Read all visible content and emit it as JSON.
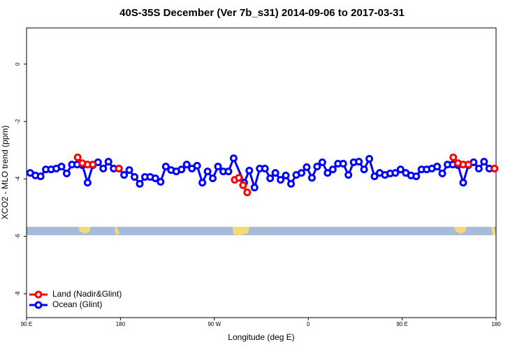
{
  "chart_data": {
    "type": "line",
    "title": "40S-35S December (Ver 7b_s31)   2014-09-06 to 2017-03-31",
    "x_label": "Longitude (deg E)",
    "y_label": "XCO2 - MLO trend (ppm)",
    "xlim": [
      90,
      540
    ],
    "xticks": [
      {
        "value": 90,
        "label": "90 E"
      },
      180,
      {
        "value": 270,
        "label": "90 W"
      },
      {
        "value": 360,
        "label": "0"
      },
      {
        "value": 450,
        "label": "90 E"
      },
      {
        "value": 540,
        "label": "180"
      }
    ],
    "ylim": [
      1.26,
      -8.83
    ],
    "yticks": [
      0,
      -2,
      -4,
      -6,
      -8
    ],
    "legend": "bottom-left",
    "series": [
      {
        "name": "Land (Nadir&Glint)",
        "color": "#ff0000",
        "x": [
          139,
          143.5,
          148.5,
          153.5,
          null,
          178.5,
          null,
          289.5,
          293.5,
          297.5,
          301.5,
          null,
          499,
          503.5,
          508.5,
          513.5,
          null,
          538.5
        ],
        "values": [
          -3.25,
          -3.45,
          -3.5,
          -3.5,
          null,
          -3.64,
          null,
          -4.03,
          -3.96,
          -4.22,
          -4.47,
          null,
          -3.25,
          -3.45,
          -3.5,
          -3.5,
          null,
          -3.64
        ]
      },
      {
        "name": "Ocean (Glint)",
        "color": "#0000ff",
        "x": [
          93.5,
          98.5,
          103.5,
          108.5,
          113.5,
          118.5,
          123.5,
          128.5,
          133.5,
          138.5,
          143.5,
          148.5,
          153.5,
          158.5,
          163.5,
          168.5,
          173.5,
          178.5,
          183.5,
          188.5,
          193.5,
          198.5,
          203.5,
          208.5,
          213.5,
          218.5,
          223.5,
          228.5,
          233.5,
          238.5,
          243.5,
          248.5,
          253.5,
          258.5,
          263.5,
          268.5,
          273.5,
          278.5,
          283.5,
          288.5,
          298.5,
          303.5,
          308.5,
          313.5,
          318.5,
          323.5,
          328.5,
          333.5,
          338.5,
          343.5,
          348.5,
          353.5,
          358.5,
          363.5,
          368.5,
          373.5,
          378.5,
          383.5,
          388.5,
          393.5,
          398.5,
          403.5,
          408.5,
          413.5,
          418.5,
          423.5,
          428.5,
          433.5,
          438.5,
          443.5,
          448.5,
          453.5,
          458.5,
          463.5,
          468.5,
          473.5,
          478.5,
          483.5,
          488.5,
          493.5,
          498.5,
          503.5,
          508.5,
          513.5,
          518.5,
          523.5,
          528.5,
          533.5,
          538.5
        ],
        "values": [
          -3.79,
          -3.88,
          -3.91,
          -3.67,
          -3.67,
          -3.64,
          -3.57,
          -3.81,
          -3.5,
          -3.5,
          -3.52,
          -4.13,
          -3.52,
          -3.42,
          -3.64,
          -3.4,
          -3.64,
          -3.64,
          -3.86,
          -3.69,
          -3.93,
          -4.17,
          -3.93,
          -3.93,
          -3.98,
          -4.1,
          -3.57,
          -3.69,
          -3.74,
          -3.67,
          -3.5,
          -3.64,
          -3.54,
          -4.13,
          -3.74,
          -3.98,
          -3.57,
          -3.74,
          -3.74,
          -3.28,
          -4.13,
          -3.71,
          -4.3,
          -3.64,
          -3.64,
          -3.98,
          -3.79,
          -4.03,
          -3.88,
          -4.17,
          -3.86,
          -3.79,
          -3.59,
          -3.96,
          -3.57,
          -3.42,
          -3.79,
          -3.67,
          -3.47,
          -3.47,
          -3.86,
          -3.42,
          -3.4,
          -3.67,
          -3.3,
          -3.91,
          -3.79,
          -3.86,
          -3.81,
          -3.79,
          -3.67,
          -3.79,
          -3.88,
          -3.91,
          -3.67,
          -3.67,
          -3.64,
          -3.57,
          -3.81,
          -3.5,
          -3.5,
          -3.52,
          -4.13,
          -3.52,
          -3.42,
          -3.64,
          -3.4,
          -3.64,
          -3.64
        ]
      }
    ]
  }
}
